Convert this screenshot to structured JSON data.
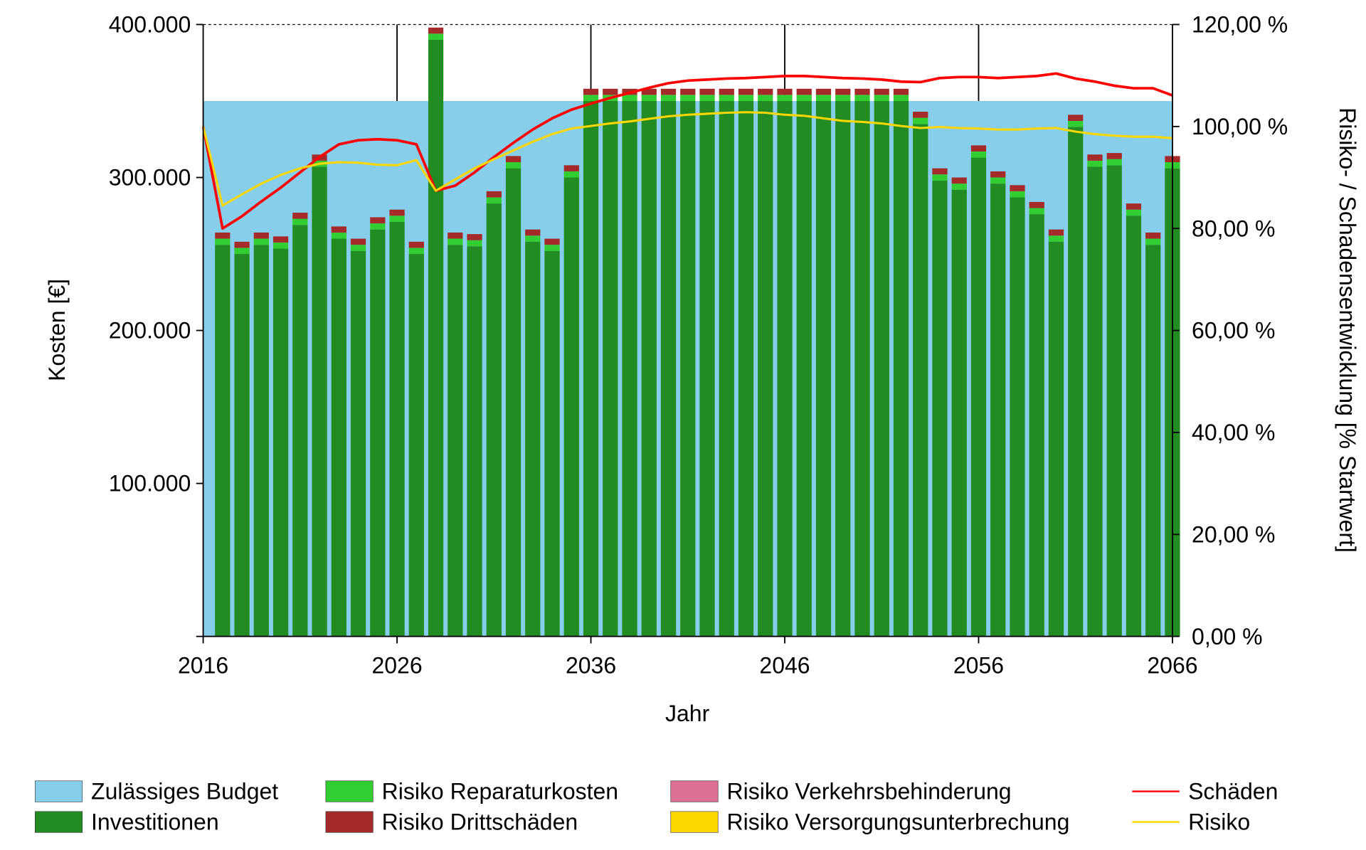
{
  "chart_data": {
    "type": "bar",
    "xlabel": "Jahr",
    "ylabel": "Kosten [€]",
    "y2label": "Risiko- / Schadensentwicklung [% Startwert]",
    "xlim": [
      2016,
      2066
    ],
    "ylim": [
      0,
      400000
    ],
    "y2lim": [
      0,
      120
    ],
    "x_ticks": [
      "2016",
      "2026",
      "2036",
      "2046",
      "2056",
      "2066"
    ],
    "y_ticks": [
      "100.000",
      "200.000",
      "300.000",
      "400.000"
    ],
    "y2_ticks": [
      "0,00 %",
      "20,00 %",
      "40,00 %",
      "60,00 %",
      "80,00 %",
      "100,00 %",
      "120,00 %"
    ],
    "legend_position": "bottom",
    "colors": {
      "budget": "#87ceeb",
      "investitionen": "#228b22",
      "reparatur": "#32cd32",
      "dritt": "#a52a2a",
      "verkehr": "#db7093",
      "versorgung": "#ffd700",
      "schaeden": "#ff0000",
      "risiko": "#ffd700"
    },
    "legend": {
      "budget": "Zulässiges Budget",
      "investitionen": "Investitionen",
      "reparatur": "Risiko Reparaturkosten",
      "dritt": "Risiko Drittschäden",
      "verkehr": "Risiko Verkehrsbehinderung",
      "versorgung": "Risiko Versorgungsunterbrechung",
      "schaeden": "Schäden",
      "risiko": "Risiko"
    },
    "budget": 350000,
    "bar_years": [
      2017,
      2018,
      2019,
      2020,
      2021,
      2022,
      2023,
      2024,
      2025,
      2026,
      2027,
      2028,
      2029,
      2030,
      2031,
      2032,
      2033,
      2034,
      2035,
      2036,
      2037,
      2038,
      2039,
      2040,
      2041,
      2042,
      2043,
      2044,
      2045,
      2046,
      2047,
      2048,
      2049,
      2050,
      2051,
      2052,
      2053,
      2054,
      2055,
      2056,
      2057,
      2058,
      2059,
      2060,
      2061,
      2062,
      2063,
      2064,
      2065,
      2066
    ],
    "series": [
      {
        "name": "Investitionen",
        "values": [
          256000,
          250000,
          256000,
          253500,
          269000,
          307000,
          260000,
          252000,
          266000,
          271000,
          250000,
          390000,
          256000,
          255000,
          283000,
          306000,
          258000,
          252000,
          300000,
          350000,
          350000,
          350000,
          350000,
          350000,
          350000,
          350000,
          350000,
          350000,
          350000,
          350000,
          350000,
          350000,
          350000,
          350000,
          350000,
          350000,
          335000,
          298000,
          292000,
          313000,
          296000,
          287000,
          276000,
          258000,
          333000,
          307000,
          308000,
          275000,
          256000,
          306000
        ]
      },
      {
        "name": "Risiko Reparaturkosten",
        "values": [
          4000,
          4000,
          4000,
          4000,
          4000,
          4000,
          4000,
          4000,
          4000,
          4000,
          4000,
          4000,
          4000,
          4000,
          4000,
          4000,
          4000,
          4000,
          4000,
          4000,
          4000,
          4000,
          4000,
          4000,
          4000,
          4000,
          4000,
          4000,
          4000,
          4000,
          4000,
          4000,
          4000,
          4000,
          4000,
          4000,
          4000,
          4000,
          4000,
          4000,
          4000,
          4000,
          4000,
          4000,
          4000,
          4000,
          4000,
          4000,
          4000,
          4000
        ]
      },
      {
        "name": "Risiko Drittschäden",
        "values": [
          4000,
          4000,
          4000,
          4000,
          4000,
          4000,
          4000,
          4000,
          4000,
          4000,
          4000,
          4000,
          4000,
          4000,
          4000,
          4000,
          4000,
          4000,
          4000,
          4000,
          4000,
          4000,
          4000,
          4000,
          4000,
          4000,
          4000,
          4000,
          4000,
          4000,
          4000,
          4000,
          4000,
          4000,
          4000,
          4000,
          4000,
          4000,
          4000,
          4000,
          4000,
          4000,
          4000,
          4000,
          4000,
          4000,
          4000,
          4000,
          4000,
          4000
        ]
      },
      {
        "name": "Risiko Verkehrsbehinderung",
        "values": [
          0,
          0,
          0,
          0,
          0,
          0,
          0,
          0,
          0,
          0,
          0,
          0,
          0,
          0,
          0,
          0,
          0,
          0,
          0,
          0,
          0,
          0,
          0,
          0,
          0,
          0,
          0,
          0,
          0,
          0,
          0,
          0,
          0,
          0,
          0,
          0,
          0,
          0,
          0,
          0,
          0,
          0,
          0,
          0,
          0,
          0,
          0,
          0,
          0,
          0
        ]
      },
      {
        "name": "Risiko Versorgungsunterbrechung",
        "values": [
          0,
          0,
          0,
          0,
          0,
          0,
          0,
          0,
          0,
          0,
          0,
          0,
          0,
          0,
          0,
          0,
          0,
          0,
          0,
          0,
          0,
          0,
          0,
          0,
          0,
          0,
          0,
          0,
          0,
          0,
          0,
          0,
          0,
          0,
          0,
          0,
          0,
          0,
          0,
          0,
          0,
          0,
          0,
          0,
          0,
          0,
          0,
          0,
          0,
          0
        ]
      }
    ],
    "line_years_start": 2016,
    "lines": [
      {
        "name": "Schäden",
        "axis": "right",
        "values": [
          100,
          80,
          82.4,
          85.3,
          88,
          91,
          94,
          96.5,
          97.3,
          97.5,
          97.3,
          96.5,
          87.4,
          88.4,
          91,
          94,
          96.8,
          99.4,
          101.6,
          103.3,
          104.5,
          105.6,
          106.6,
          107.6,
          108.5,
          109,
          109.2,
          109.4,
          109.5,
          109.7,
          109.9,
          109.9,
          109.7,
          109.5,
          109.4,
          109.2,
          108.8,
          108.7,
          109.5,
          109.7,
          109.7,
          109.5,
          109.7,
          109.9,
          110.4,
          109.4,
          108.8,
          108,
          107.5,
          107.5,
          106.1
        ]
      },
      {
        "name": "Risiko",
        "axis": "right",
        "values": [
          100,
          84.5,
          86.7,
          88.8,
          90.5,
          91.8,
          92.7,
          93,
          92.9,
          92.5,
          92.4,
          93.4,
          87.4,
          89.6,
          91.8,
          93.6,
          95.3,
          97,
          98.5,
          99.6,
          100.1,
          100.6,
          101,
          101.5,
          102,
          102.3,
          102.5,
          102.7,
          102.8,
          102.7,
          102.3,
          102.1,
          101.6,
          101.1,
          100.9,
          100.6,
          100.1,
          99.7,
          99.9,
          99.7,
          99.6,
          99.4,
          99.4,
          99.6,
          99.7,
          99,
          98.5,
          98.2,
          98,
          98,
          97.7
        ]
      }
    ]
  }
}
